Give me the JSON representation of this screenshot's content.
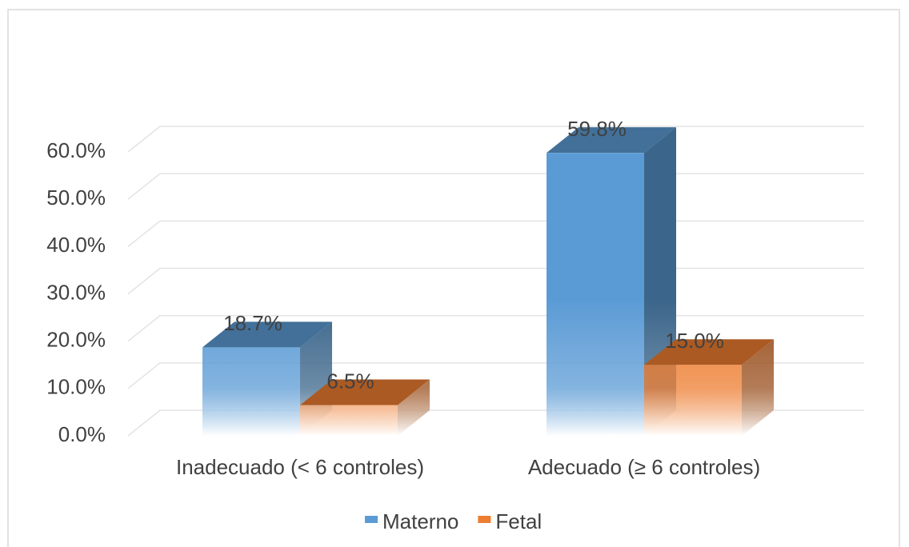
{
  "chart_data": {
    "type": "bar3d",
    "categories": [
      "Inadecuado (< 6 controles)",
      "Adecuado (≥ 6 controles)"
    ],
    "series": [
      {
        "name": "Materno",
        "color": "#5b9bd5",
        "values": [
          18.7,
          59.8
        ],
        "value_labels": [
          "18.7%",
          "59.8%"
        ]
      },
      {
        "name": "Fetal",
        "color": "#ed7d31",
        "values": [
          6.5,
          15.0
        ],
        "value_labels": [
          "6.5%",
          "15.0%"
        ]
      }
    ],
    "ylim": [
      0,
      60
    ],
    "yticks": [
      {
        "value": 0,
        "label": "0.0%"
      },
      {
        "value": 10,
        "label": "10.0%"
      },
      {
        "value": 20,
        "label": "20.0%"
      },
      {
        "value": 30,
        "label": "30.0%"
      },
      {
        "value": 40,
        "label": "40.0%"
      },
      {
        "value": 50,
        "label": "50.0%"
      },
      {
        "value": 60,
        "label": "60.0%"
      }
    ],
    "grid": true,
    "legend": "bottom"
  }
}
